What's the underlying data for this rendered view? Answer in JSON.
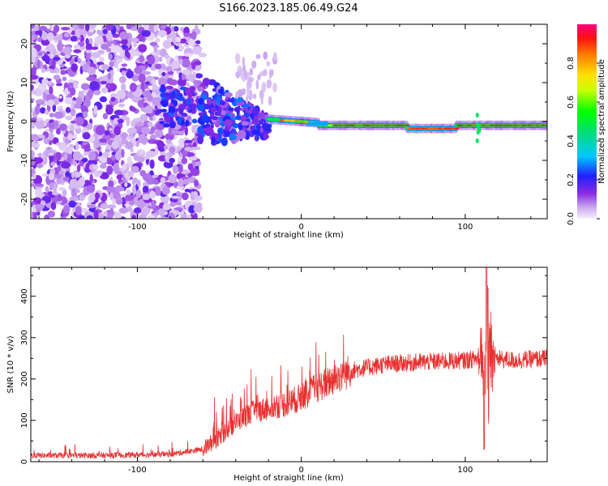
{
  "title": "S166.2023.185.06.49.G24",
  "chart_data": [
    {
      "type": "heatmap",
      "xlabel": "Height of straight line (km)",
      "ylabel": "Frequency (Hz)",
      "xlim": [
        -165,
        150
      ],
      "ylim": [
        -25,
        25
      ],
      "xticks": [
        -100,
        0,
        100
      ],
      "yticks": [
        -20,
        -10,
        0,
        10,
        20
      ],
      "colorbar": {
        "label": "Normalized spectral amplitude",
        "range": [
          0,
          1
        ],
        "ticks": [
          0.0,
          0.2,
          0.4,
          0.6,
          0.8
        ],
        "colormap": "rainbow"
      },
      "description_bands": [
        {
          "x_range": [
            -165,
            -62
          ],
          "freq_range": [
            -25,
            25
          ],
          "amplitude": "low scattered noise"
        },
        {
          "x_range": [
            -62,
            -20
          ],
          "freq_range": [
            -8,
            12
          ],
          "amplitude": "rising, transitional"
        },
        {
          "x_range": [
            -20,
            150
          ],
          "freq_range": [
            -2,
            1
          ],
          "amplitude": "high, near 0 Hz"
        }
      ]
    },
    {
      "type": "line",
      "xlabel": "Height of straight line (km)",
      "ylabel": "SNR (10 * v/v)",
      "xlim": [
        -165,
        150
      ],
      "ylim": [
        0,
        470
      ],
      "xticks": [
        -100,
        0,
        100
      ],
      "yticks": [
        0,
        100,
        200,
        300,
        400
      ],
      "color": "#e83030",
      "trend_points": [
        {
          "x": -165,
          "y": 15
        },
        {
          "x": -120,
          "y": 15
        },
        {
          "x": -80,
          "y": 18
        },
        {
          "x": -60,
          "y": 30
        },
        {
          "x": -50,
          "y": 60
        },
        {
          "x": -40,
          "y": 95
        },
        {
          "x": -30,
          "y": 120
        },
        {
          "x": -20,
          "y": 130
        },
        {
          "x": -10,
          "y": 140
        },
        {
          "x": 0,
          "y": 155
        },
        {
          "x": 10,
          "y": 180
        },
        {
          "x": 20,
          "y": 200
        },
        {
          "x": 30,
          "y": 220
        },
        {
          "x": 50,
          "y": 235
        },
        {
          "x": 70,
          "y": 240
        },
        {
          "x": 100,
          "y": 245
        },
        {
          "x": 108,
          "y": 250
        },
        {
          "x": 114,
          "y": 250
        },
        {
          "x": 130,
          "y": 245
        },
        {
          "x": 150,
          "y": 250
        }
      ],
      "spike": {
        "x": 113,
        "max": 470,
        "min": 30
      }
    }
  ]
}
